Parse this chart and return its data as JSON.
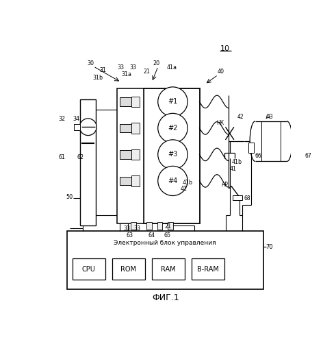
{
  "bg_color": "#ffffff",
  "fig_label": "ФИГ.1",
  "title": "10",
  "ecm_label": "Электронный блок управления",
  "ecm_chips": [
    "CPU",
    "ROM",
    "RAM",
    "B-RAM"
  ],
  "cylinders": [
    "#1",
    "#2",
    "#3",
    "#4"
  ]
}
